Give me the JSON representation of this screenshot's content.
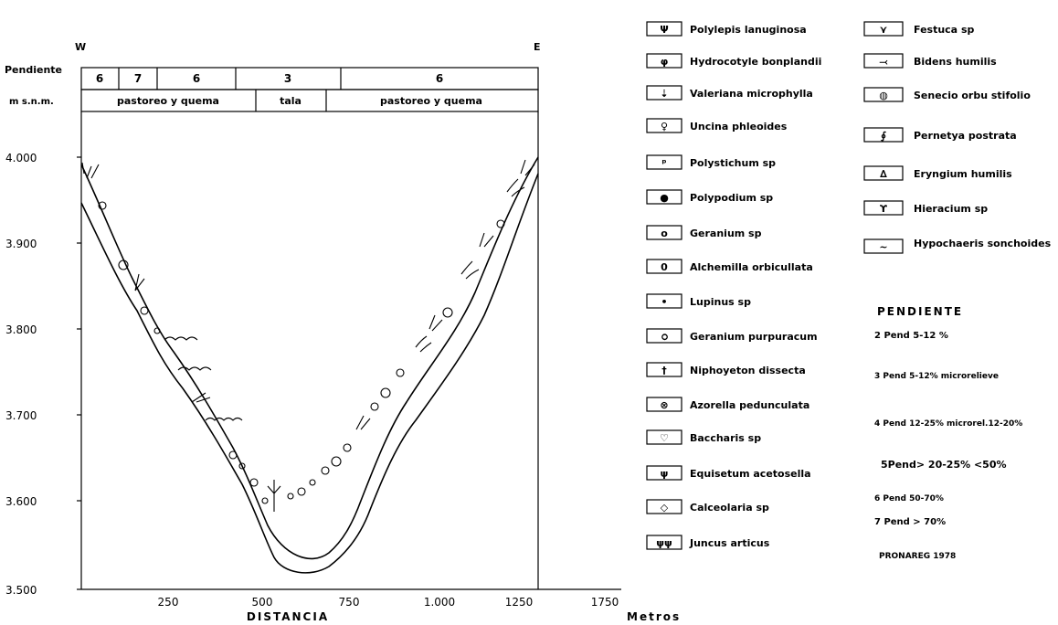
{
  "compass": {
    "west": "W",
    "east": "E"
  },
  "header": {
    "pendiente_label": "Pendiente",
    "msnm_label": "m s.n.m.",
    "slope_cells": [
      "6",
      "7",
      "6",
      "3",
      "6"
    ],
    "use_cells": [
      "pastoreo y quema",
      "tala",
      "pastoreo y quema"
    ]
  },
  "y_axis": {
    "ticks": [
      "4.000",
      "3.900",
      "3.800",
      "3.700",
      "3.600",
      "3.500"
    ]
  },
  "x_axis": {
    "ticks": [
      "250",
      "500",
      "750",
      "1.000",
      "1250",
      "1750"
    ],
    "label": "DISTANCIA",
    "unit": "Metros"
  },
  "legend_col1": [
    {
      "name": "Polylepis lanuginosa",
      "symbol": "Ψ"
    },
    {
      "name": "Hydrocotyle bonplandii",
      "symbol": "φ"
    },
    {
      "name": "Valeriana microphylla",
      "symbol": "⇣"
    },
    {
      "name": "Uncina phleoides",
      "symbol": "♀"
    },
    {
      "name": "Polystichum sp",
      "symbol": "ᵖ"
    },
    {
      "name": "Polypodium sp",
      "symbol": "●"
    },
    {
      "name": "Geranium sp",
      "symbol": "o"
    },
    {
      "name": "Alchemilla orbicullata",
      "symbol": "0"
    },
    {
      "name": "Lupinus sp",
      "symbol": "•"
    },
    {
      "name": "Geranium purpuracum",
      "symbol": "ഠ"
    },
    {
      "name": "Niphoyeton dissecta",
      "symbol": "†"
    },
    {
      "name": "Azorella pedunculata",
      "symbol": "⊗"
    },
    {
      "name": "Baccharis sp",
      "symbol": "♡"
    },
    {
      "name": "Equisetum acetosella",
      "symbol": "ψ"
    },
    {
      "name": "Calceolaria sp",
      "symbol": "◇"
    },
    {
      "name": "Juncus articus",
      "symbol": "ψψ"
    }
  ],
  "legend_col2": [
    {
      "name": "Festuca sp",
      "symbol": "⋎"
    },
    {
      "name": "Bidens humilis",
      "symbol": "⤙"
    },
    {
      "name": "Senecio orbu stifolio",
      "symbol": "◍"
    },
    {
      "name": "Pernetya postrata",
      "symbol": "∮"
    },
    {
      "name": "Eryngium humilis",
      "symbol": "∆"
    },
    {
      "name": "Hieracium sp",
      "symbol": "ϒ"
    },
    {
      "name": "Hypochaeris sonchoides",
      "symbol": "~"
    }
  ],
  "pendiente": {
    "title": "PENDIENTE",
    "items": [
      "2 Pend 5-12 %",
      "3 Pend 5-12% microrelieve",
      "4 Pend 12-25% microrel.12-20%",
      "5Pend> 20-25% <50%",
      "6 Pend 50-70%",
      "7 Pend > 70%"
    ],
    "source": "PRONAREG 1978"
  }
}
